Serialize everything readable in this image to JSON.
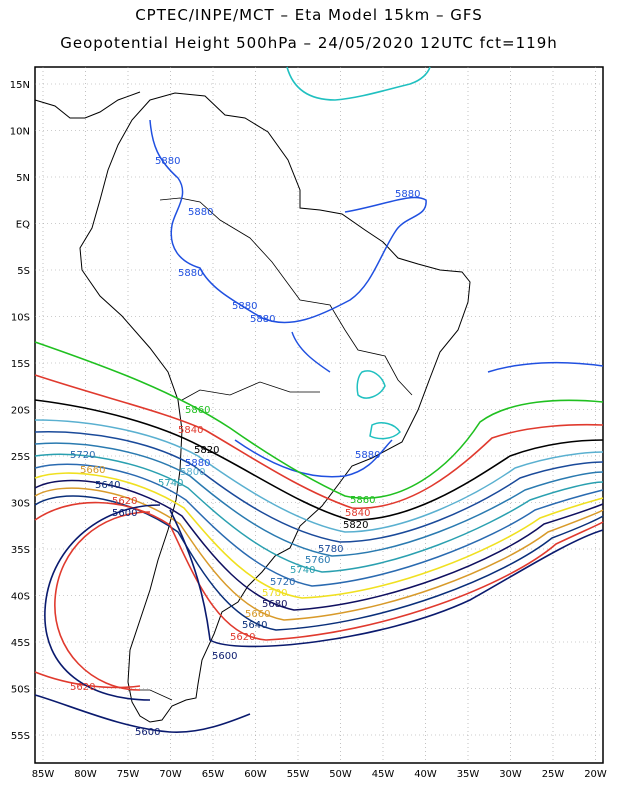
{
  "title_line1": "CPTEC/INPE/MCT –  Eta Model 15km – GFS",
  "title_line2": "Geopotential Height 500hPa – 24/05/2020 12UTC fct=119h",
  "axis": {
    "lon_labels": [
      "85W",
      "80W",
      "75W",
      "70W",
      "65W",
      "60W",
      "55W",
      "50W",
      "45W",
      "40W",
      "35W",
      "30W",
      "25W",
      "20W"
    ],
    "lat_labels": [
      "15N",
      "10N",
      "5N",
      "EQ",
      "5S",
      "10S",
      "15S",
      "20S",
      "25S",
      "30S",
      "35S",
      "40S",
      "45S",
      "50S",
      "55S"
    ]
  },
  "colors": {
    "c5600": "#0a1a6e",
    "c5620": "#e03a2e",
    "c5640": "#0a2f7a",
    "c5660": "#d89a2a",
    "c5680": "#101060",
    "c5700": "#f0e020",
    "c5720": "#2a6ab0",
    "c5740": "#2aa0b0",
    "c5760": "#2a7ab0",
    "c5780": "#1a4a9a",
    "c5800": "#5ab0d0",
    "c5820": "#000000",
    "c5840": "#e03a2e",
    "c5860": "#20c020",
    "c5880": "#2050e0",
    "c5900": "#20c0c0",
    "coast": "#000000",
    "grid": "#999999"
  },
  "contour_labels": [
    {
      "text": "5880",
      "color": "#2050e0"
    },
    {
      "text": "5880",
      "color": "#2050e0"
    },
    {
      "text": "5880",
      "color": "#2050e0"
    },
    {
      "text": "5880",
      "color": "#2050e0"
    },
    {
      "text": "5880",
      "color": "#2050e0"
    },
    {
      "text": "5880",
      "color": "#2050e0"
    },
    {
      "text": "5880",
      "color": "#2050e0"
    },
    {
      "text": "5880",
      "color": "#2050e0"
    },
    {
      "text": "5860",
      "color": "#20c020"
    },
    {
      "text": "5860",
      "color": "#20c020"
    },
    {
      "text": "5840",
      "color": "#e03a2e"
    },
    {
      "text": "5840",
      "color": "#e03a2e"
    },
    {
      "text": "5820",
      "color": "#000000"
    },
    {
      "text": "5820",
      "color": "#000000"
    },
    {
      "text": "5800",
      "color": "#5ab0d0"
    },
    {
      "text": "5780",
      "color": "#1a4a9a"
    },
    {
      "text": "5760",
      "color": "#2a7ab0"
    },
    {
      "text": "5740",
      "color": "#2aa0b0"
    },
    {
      "text": "5740",
      "color": "#2aa0b0"
    },
    {
      "text": "5720",
      "color": "#2a6ab0"
    },
    {
      "text": "5720",
      "color": "#2a6ab0"
    },
    {
      "text": "5700",
      "color": "#f0e020"
    },
    {
      "text": "5680",
      "color": "#101060"
    },
    {
      "text": "5660",
      "color": "#d89a2a"
    },
    {
      "text": "5660",
      "color": "#d89a2a"
    },
    {
      "text": "5640",
      "color": "#0a2f7a"
    },
    {
      "text": "5640",
      "color": "#0a2f7a"
    },
    {
      "text": "5620",
      "color": "#e03a2e"
    },
    {
      "text": "5620",
      "color": "#e03a2e"
    },
    {
      "text": "5620",
      "color": "#e03a2e"
    },
    {
      "text": "5600",
      "color": "#0a1a6e"
    },
    {
      "text": "5600",
      "color": "#0a1a6e"
    },
    {
      "text": "5600",
      "color": "#0a1a6e"
    }
  ]
}
